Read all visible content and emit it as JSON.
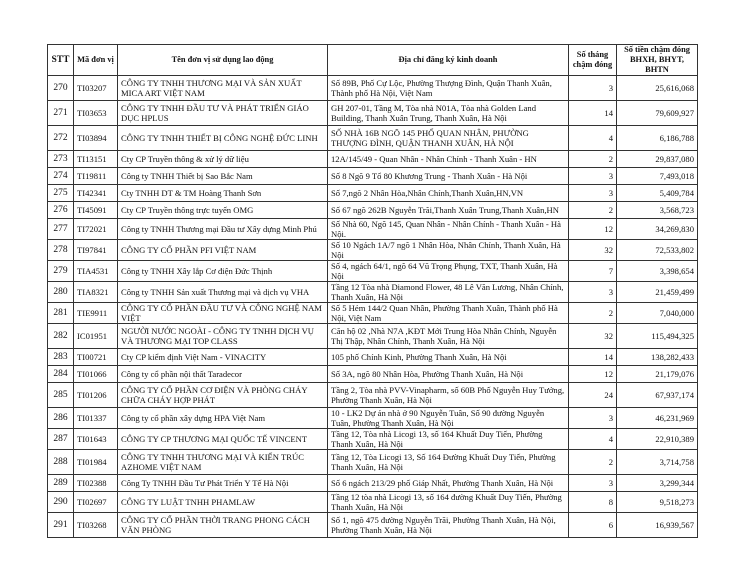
{
  "headers": {
    "stt": "STT",
    "code": "Mã đơn vị",
    "name": "Tên đơn vị sử dụng lao động",
    "address": "Địa chỉ đăng ký kinh doanh",
    "months_line1": "Số tháng",
    "months_line2": "chậm đóng",
    "amount_line1": "Số tiền chậm đóng",
    "amount_line2": "BHXH, BHYT, BHTN"
  },
  "rows": [
    {
      "stt": "270",
      "code": "TI03207",
      "name": "CÔNG TY TNHH THƯƠNG MẠI VÀ SẢN XUẤT MICA ART VIỆT NAM",
      "address": "Số 89B, Phố Cự Lộc, Phường Thượng Đình, Quận Thanh Xuân, Thành phố Hà Nội, Việt Nam",
      "months": "3",
      "amount": "25,616,068",
      "lines": 2
    },
    {
      "stt": "271",
      "code": "TI03653",
      "name": "CÔNG TY TNHH ĐẦU TƯ VÀ PHÁT TRIỂN GIÁO DỤC HPLUS",
      "address": "GH 207-01, Tầng M, Tòa nhà N01A, Tòa nhà Golden Land Building, Thanh Xuân Trung, Thanh Xuân, Hà Nội",
      "months": "14",
      "amount": "79,609,927",
      "lines": 2
    },
    {
      "stt": "272",
      "code": "TI03894",
      "name": "CÔNG TY TNHH THIẾT BỊ CÔNG NGHỆ ĐỨC LINH",
      "address": "SỐ NHÀ 16B NGÕ 145 PHỐ QUAN NHÂN, PHƯỜNG THƯỢNG ĐÌNH, QUẬN THANH XUÂN, HÀ NỘI",
      "months": "4",
      "amount": "6,186,788",
      "lines": 2
    },
    {
      "stt": "273",
      "code": "TI13151",
      "name": "Cty CP Truyền thông & xử lý dữ liệu",
      "address": "12A/145/49 - Quan Nhân - Nhân Chính - Thanh Xuân - HN",
      "months": "2",
      "amount": "29,837,080",
      "lines": 1
    },
    {
      "stt": "274",
      "code": "TI19811",
      "name": "Công ty TNHH Thiết bị Sao Bắc Nam",
      "address": "Số 8 Ngõ 9 Tổ 80 Khương Trung - Thanh Xuân - Hà Nội",
      "months": "3",
      "amount": "7,493,018",
      "lines": 1
    },
    {
      "stt": "275",
      "code": "TI42341",
      "name": "Cty TNHH DT & TM Hoàng Thanh Sơn",
      "address": "Số 7,ngõ 2 Nhân Hòa,Nhân Chính,Thanh Xuân,HN,VN",
      "months": "3",
      "amount": "5,409,784",
      "lines": 1
    },
    {
      "stt": "276",
      "code": "TI45091",
      "name": "Cty CP Truyền thông trực tuyến OMG",
      "address": "Số 67 ngõ 262B Nguyễn Trãi,Thanh Xuân Trung,Thanh Xuân,HN",
      "months": "2",
      "amount": "3,568,723",
      "lines": 1
    },
    {
      "stt": "277",
      "code": "TI72021",
      "name": "Công ty TNHH Thương mại Đầu tư Xây dựng Minh Phú",
      "address": "Số Nhà 60, Ngõ 145, Quan Nhân - Nhân Chính - Thanh Xuân - Hà Nội.",
      "months": "12",
      "amount": "34,269,830",
      "lines": 1
    },
    {
      "stt": "278",
      "code": "TI97841",
      "name": "CÔNG TY CỔ PHẦN PFI VIỆT NAM",
      "address": "Số 10 Ngách 1A/7 ngõ 1 Nhân Hòa, Nhân Chính, Thanh Xuân, Hà Nội",
      "months": "32",
      "amount": "72,533,802",
      "lines": 1
    },
    {
      "stt": "279",
      "code": "TIA4531",
      "name": "Công ty TNHH Xây lắp Cơ điện Đức Thịnh",
      "address": "Số 4, ngách 64/1, ngõ 64 Vũ Trọng Phụng, TXT, Thanh Xuân, Hà Nội",
      "months": "7",
      "amount": "3,398,654",
      "lines": 1
    },
    {
      "stt": "280",
      "code": "TIA8321",
      "name": "Công ty TNHH Sản xuất Thương mại và dịch vụ VHA",
      "address": "Tầng 12 Tòa nhà Diamond Flower, 48 Lê Văn Lương, Nhân Chính, Thanh Xuân, Hà Nội",
      "months": "3",
      "amount": "21,459,499",
      "lines": 1
    },
    {
      "stt": "281",
      "code": "TIE9911",
      "name": "CÔNG TY CỔ PHẦN ĐẦU TƯ VÀ CÔNG NGHỆ NAM VIỆT",
      "address": "Số 5 Hẻm 144/2 Quan Nhân, Phường Thanh Xuân, Thành phố Hà Nội, Việt Nam",
      "months": "2",
      "amount": "7,040,000",
      "lines": 1
    },
    {
      "stt": "282",
      "code": "IC01951",
      "name": "NGƯỜI NƯỚC NGOÀI - CÔNG TY TNHH DỊCH VỤ VÀ THƯƠNG MẠI TOP CLASS",
      "address": "Căn hộ 02 ,Nhà N7A ,KĐT Mới Trung Hòa Nhân Chính, Nguyễn Thị Thập, Nhân Chính, Thanh Xuân, Hà Nội",
      "months": "32",
      "amount": "115,494,325",
      "lines": 2
    },
    {
      "stt": "283",
      "code": "TI00721",
      "name": "Cty CP kiểm định Việt Nam - VINACITY",
      "address": "105 phố Chính Kinh, Phường Thanh Xuân, Hà Nội",
      "months": "14",
      "amount": "138,282,433",
      "lines": 1
    },
    {
      "stt": "284",
      "code": "TI01066",
      "name": "Công ty cổ phần nội thất Taradecor",
      "address": "Số 3A, ngõ 80 Nhân Hòa, Phường Thanh Xuân, Hà Nội",
      "months": "12",
      "amount": "21,179,076",
      "lines": 1
    },
    {
      "stt": "285",
      "code": "TI01206",
      "name": "CÔNG TY CỔ PHẦN CƠ ĐIỆN VÀ PHÒNG CHÁY CHỮA CHÁY HỢP PHÁT",
      "address": "Tầng 2, Tòa nhà PVV-Vinapharm, số 60B Phố Nguyễn Huy Tưởng, Phường Thanh Xuân, Hà Nội",
      "months": "24",
      "amount": "67,937,174",
      "lines": 2
    },
    {
      "stt": "286",
      "code": "TI01337",
      "name": "Công ty cổ phần xây dựng HPA Việt Nam",
      "address": "10 - LK2 Dự án nhà ở 90 Nguyễn Tuân, Số 90 đường Nguyễn Tuân, Phường Thanh Xuân, Hà Nội",
      "months": "3",
      "amount": "46,231,969",
      "lines": 1
    },
    {
      "stt": "287",
      "code": "TI01643",
      "name": "CÔNG TY CP THƯƠNG MẠI QUỐC TẾ VINCENT",
      "address": "Tầng 12, Tòa nhà Licogi 13, số 164 Khuất Duy Tiến, Phường Thanh Xuân, Hà Nội",
      "months": "4",
      "amount": "22,910,389",
      "lines": 1
    },
    {
      "stt": "288",
      "code": "TI01984",
      "name": "CÔNG TY TNHH THƯƠNG MẠI VÀ KIẾN TRÚC AZHOME VIỆT NAM",
      "address": "Tầng 12, Tòa Licogi 13, Số 164 Đường Khuất Duy Tiến, Phường Thanh Xuân, Hà Nội",
      "months": "2",
      "amount": "3,714,758",
      "lines": 2
    },
    {
      "stt": "289",
      "code": "TI02388",
      "name": "Công Ty TNHH Đầu Tư Phát Triển Y Tế Hà Nội",
      "address": "Số 6 ngách 213/29 phố Giáp Nhất, Phường Thanh Xuân, Hà Nội",
      "months": "3",
      "amount": "3,299,344",
      "lines": 1
    },
    {
      "stt": "290",
      "code": "TI02697",
      "name": "CÔNG TY LUẬT TNHH PHAMLAW",
      "address": "Tầng 12 tòa nhà Licogi 13, số 164 đường Khuất Duy Tiến, Phường Thanh Xuân, Hà Nội",
      "months": "8",
      "amount": "9,518,273",
      "lines": 1
    },
    {
      "stt": "291",
      "code": "TI03268",
      "name": "CÔNG TY CỔ PHẦN THỜI TRANG PHONG CÁCH VĂN PHÒNG",
      "address": "Số 1, ngõ 475 đường Nguyễn Trãi, Phường Thanh Xuân, Hà Nội, Phường Thanh Xuân, Hà Nội",
      "months": "6",
      "amount": "16,939,567",
      "lines": 2
    }
  ]
}
